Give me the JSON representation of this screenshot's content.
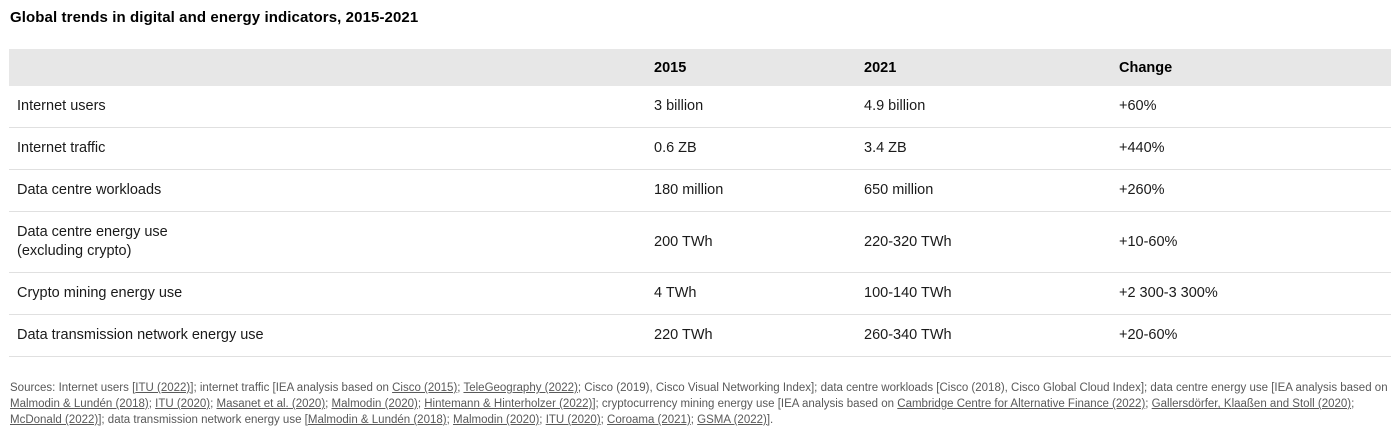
{
  "title": "Global trends in digital and energy indicators, 2015-2021",
  "colors": {
    "header_background": "#e7e7e7",
    "row_border": "#e0e0e0",
    "body_text": "#1a1a1a",
    "sources_text": "#595959"
  },
  "table": {
    "columns": [
      {
        "key": "indicator",
        "label": ""
      },
      {
        "key": "2015",
        "label": "2015"
      },
      {
        "key": "2021",
        "label": "2021"
      },
      {
        "key": "change",
        "label": "Change"
      }
    ],
    "rows": [
      {
        "indicator": "Internet users",
        "y2015": "3 billion",
        "y2021": "4.9 billion",
        "change": "+60%"
      },
      {
        "indicator": "Internet traffic",
        "y2015": "0.6 ZB",
        "y2021": "3.4 ZB",
        "change": "+440%"
      },
      {
        "indicator": "Data centre workloads",
        "y2015": "180 million",
        "y2021": "650 million",
        "change": "+260%"
      },
      {
        "indicator": "Data centre energy use\n(excluding crypto)",
        "y2015": "200 TWh",
        "y2021": "220-320 TWh",
        "change": "+10-60%"
      },
      {
        "indicator": "Crypto mining energy use",
        "y2015": "4 TWh",
        "y2021": "100-140 TWh",
        "change": "+2 300-3 300%"
      },
      {
        "indicator": "Data transmission network energy use",
        "y2015": "220 TWh",
        "y2021": "260-340 TWh",
        "change": "+20-60%"
      }
    ]
  },
  "sources": {
    "segments": [
      {
        "text": "Sources: Internet users [",
        "link": false
      },
      {
        "text": "ITU (2022)]",
        "link": true
      },
      {
        "text": "; internet traffic [IEA analysis based on ",
        "link": false
      },
      {
        "text": "Cisco (2015)",
        "link": true
      },
      {
        "text": "; ",
        "link": false
      },
      {
        "text": "TeleGeography (2022)",
        "link": true
      },
      {
        "text": "; Cisco (2019), Cisco Visual Networking Index]; data centre workloads [Cisco (2018), Cisco Global Cloud Index]; data centre energy use [IEA analysis based on ",
        "link": false
      },
      {
        "text": "Malmodin & Lundén (2018)",
        "link": true
      },
      {
        "text": "; ",
        "link": false
      },
      {
        "text": "ITU (2020)",
        "link": true
      },
      {
        "text": "; ",
        "link": false
      },
      {
        "text": "Masanet et al. (2020)",
        "link": true
      },
      {
        "text": "; ",
        "link": false
      },
      {
        "text": "Malmodin (2020)",
        "link": true
      },
      {
        "text": "; ",
        "link": false
      },
      {
        "text": "Hintemann & Hinterholzer (2022)]",
        "link": true
      },
      {
        "text": "; cryptocurrency mining energy use [IEA analysis based on ",
        "link": false
      },
      {
        "text": "Cambridge Centre for Alternative Finance (2022)",
        "link": true
      },
      {
        "text": "; ",
        "link": false
      },
      {
        "text": "Gallersdörfer, Klaaßen and Stoll (2020)",
        "link": true
      },
      {
        "text": "; ",
        "link": false
      },
      {
        "text": "McDonald (2022)]",
        "link": true
      },
      {
        "text": "; data transmission network energy use [",
        "link": false
      },
      {
        "text": "Malmodin & Lundén (2018)",
        "link": true
      },
      {
        "text": "; ",
        "link": false
      },
      {
        "text": "Malmodin (2020)",
        "link": true
      },
      {
        "text": "; ",
        "link": false
      },
      {
        "text": "ITU (2020)",
        "link": true
      },
      {
        "text": "; ",
        "link": false
      },
      {
        "text": "Coroama (2021)",
        "link": true
      },
      {
        "text": "; ",
        "link": false
      },
      {
        "text": "GSMA (2022)]",
        "link": true
      },
      {
        "text": ".",
        "link": false
      }
    ]
  }
}
